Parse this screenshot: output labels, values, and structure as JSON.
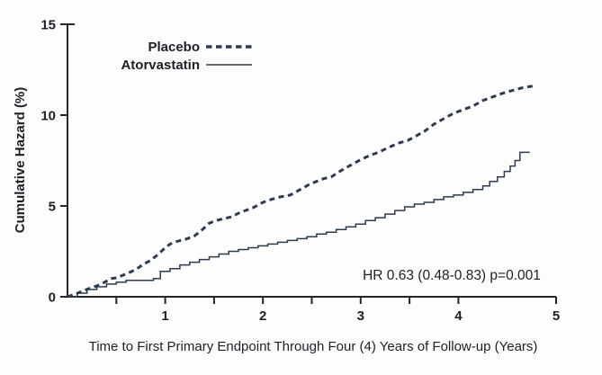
{
  "figure": {
    "background": "#fdfdfd",
    "line_color": "#2e3a4d",
    "text_color": "#1c2026"
  },
  "chart_data": {
    "type": "line",
    "subtype": "cumulative-hazard-step-curves",
    "title": "",
    "xlabel": "Time to First Primary Endpoint Through Four (4) Years of Follow-up (Years)",
    "ylabel": "Cumulative Hazard (%)",
    "xlim": [
      0,
      5
    ],
    "ylim": [
      0,
      15
    ],
    "grid": false,
    "legend_position": "top-left-inside",
    "x_major_ticks": [
      1,
      2,
      3,
      4,
      5
    ],
    "x_tick_labels": [
      "1",
      "2",
      "3",
      "4",
      "5"
    ],
    "x_minor_ticks": [
      0.5,
      1.5,
      2.5,
      3.5
    ],
    "y_ticks": [
      0,
      5,
      10,
      15
    ],
    "y_tick_labels": [
      "0",
      "5",
      "10",
      "15"
    ],
    "annotation": "HR 0.63 (0.48-0.83)  p=0.001",
    "legend": [
      {
        "label": "Placebo",
        "style": "dashed"
      },
      {
        "label": "Atorvastatin",
        "style": "solid"
      }
    ],
    "series": [
      {
        "name": "Placebo",
        "style": "dashed",
        "x": [
          0,
          0.08,
          0.15,
          0.22,
          0.3,
          0.38,
          0.45,
          0.5,
          0.55,
          0.62,
          0.7,
          0.78,
          0.85,
          0.92,
          1.0,
          1.05,
          1.12,
          1.2,
          1.3,
          1.38,
          1.45,
          1.52,
          1.6,
          1.68,
          1.75,
          1.82,
          1.9,
          2.0,
          2.08,
          2.18,
          2.28,
          2.38,
          2.48,
          2.55,
          2.62,
          2.7,
          2.8,
          2.9,
          3.0,
          3.08,
          3.18,
          3.28,
          3.38,
          3.48,
          3.55,
          3.65,
          3.75,
          3.85,
          3.95,
          4.05,
          4.15,
          4.25,
          4.35,
          4.45,
          4.55,
          4.65,
          4.76
        ],
        "y": [
          0,
          0.15,
          0.3,
          0.45,
          0.6,
          0.8,
          1.0,
          1.05,
          1.15,
          1.3,
          1.5,
          1.8,
          2.0,
          2.3,
          2.7,
          2.9,
          3.05,
          3.15,
          3.35,
          3.7,
          4.05,
          4.2,
          4.3,
          4.4,
          4.6,
          4.75,
          4.9,
          5.2,
          5.35,
          5.5,
          5.6,
          5.9,
          6.2,
          6.35,
          6.5,
          6.6,
          6.95,
          7.25,
          7.55,
          7.75,
          7.95,
          8.2,
          8.45,
          8.6,
          8.8,
          9.1,
          9.5,
          9.8,
          10.1,
          10.3,
          10.5,
          10.8,
          11.0,
          11.2,
          11.35,
          11.5,
          11.6
        ]
      },
      {
        "name": "Atorvastatin",
        "style": "solid",
        "x": [
          0,
          0.1,
          0.2,
          0.3,
          0.4,
          0.5,
          0.6,
          0.75,
          0.88,
          0.95,
          1.05,
          1.15,
          1.25,
          1.35,
          1.45,
          1.55,
          1.65,
          1.75,
          1.85,
          1.95,
          2.05,
          2.15,
          2.25,
          2.35,
          2.45,
          2.55,
          2.65,
          2.75,
          2.85,
          2.95,
          3.05,
          3.15,
          3.25,
          3.35,
          3.45,
          3.55,
          3.65,
          3.75,
          3.85,
          3.95,
          4.05,
          4.15,
          4.25,
          4.32,
          4.4,
          4.47,
          4.53,
          4.58,
          4.63,
          4.73
        ],
        "y": [
          0,
          0.2,
          0.4,
          0.55,
          0.7,
          0.8,
          0.9,
          0.9,
          1.0,
          1.4,
          1.55,
          1.75,
          1.9,
          2.05,
          2.2,
          2.35,
          2.5,
          2.6,
          2.7,
          2.8,
          2.9,
          3.0,
          3.1,
          3.2,
          3.3,
          3.45,
          3.55,
          3.7,
          3.85,
          4.0,
          4.2,
          4.35,
          4.55,
          4.75,
          4.95,
          5.1,
          5.2,
          5.35,
          5.5,
          5.6,
          5.75,
          5.9,
          6.1,
          6.35,
          6.6,
          6.9,
          7.2,
          7.5,
          7.95,
          7.95
        ]
      }
    ]
  }
}
